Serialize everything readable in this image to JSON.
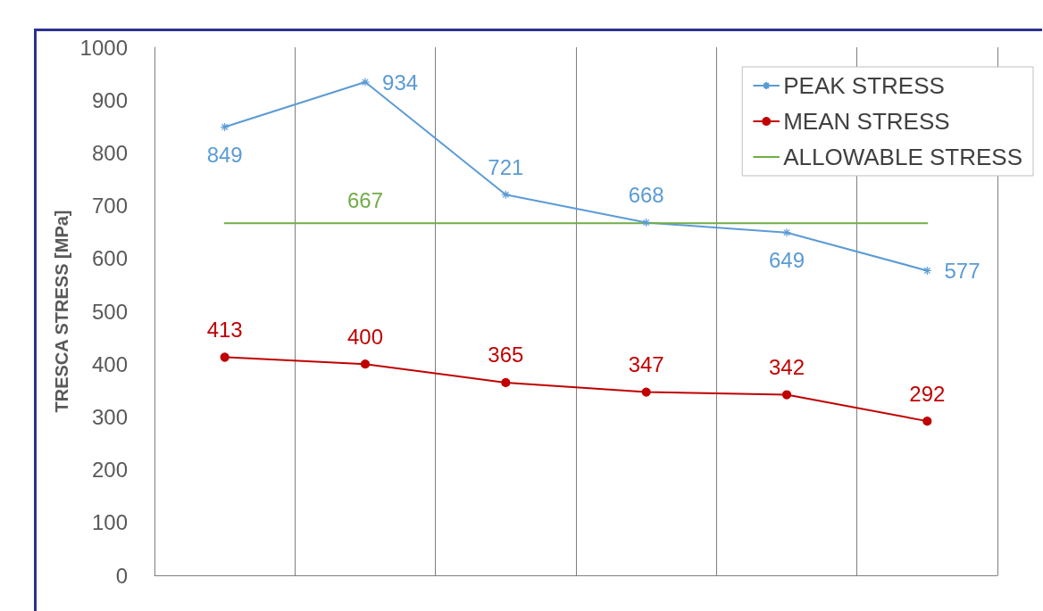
{
  "chart_data": {
    "type": "line",
    "ylabel": "TRESCA STRESS [MPa]",
    "categories": [
      null,
      null,
      null,
      null,
      null,
      null
    ],
    "series": [
      {
        "name": "PEAK STRESS",
        "color": "#5b9bd5",
        "marker": "cross",
        "values": [
          849,
          934,
          721,
          668,
          649,
          577
        ],
        "value_labels": [
          "849",
          "934",
          "721",
          "668",
          "649",
          "577"
        ]
      },
      {
        "name": "MEAN STRESS",
        "color": "#c00000",
        "marker": "circle",
        "values": [
          413,
          400,
          365,
          347,
          342,
          292
        ],
        "value_labels": [
          "413",
          "400",
          "365",
          "347",
          "342",
          "292"
        ]
      },
      {
        "name": "ALLOWABLE STRESS",
        "color": "#70ad47",
        "marker": "none",
        "values": [
          667,
          667,
          667,
          667,
          667,
          667
        ],
        "value_labels": [
          null,
          "667",
          null,
          null,
          null,
          null
        ]
      }
    ],
    "ylim": [
      0,
      1000
    ],
    "yticks": [
      0,
      100,
      200,
      300,
      400,
      500,
      600,
      700,
      800,
      900,
      1000
    ],
    "grid": "x",
    "legend": "top right",
    "line_style": "solid"
  }
}
